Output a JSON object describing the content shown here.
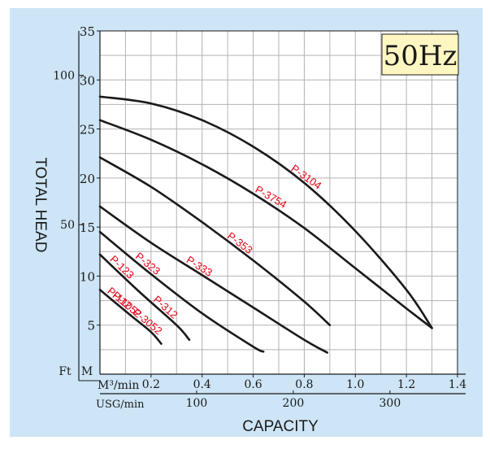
{
  "chart_data": {
    "type": "line",
    "title": "",
    "frequency_badge": "50Hz",
    "xlabel": "CAPACITY",
    "ylabel": "TOTAL HEAD",
    "x_unit_primary": "M³/min",
    "x_unit_secondary": "USG/min",
    "y_unit_meters": "M",
    "y_unit_feet": "Ft",
    "xlim": [
      0,
      1.4
    ],
    "ylim": [
      0,
      35
    ],
    "grid": true,
    "x_ticks_primary": [
      "0.2",
      "0.4",
      "0.6",
      "0.8",
      "1.0",
      "1.2",
      "1.4"
    ],
    "x_ticks_secondary": [
      {
        "label": "100",
        "m3_min": 0.3785
      },
      {
        "label": "200",
        "m3_min": 0.757
      },
      {
        "label": "300",
        "m3_min": 1.1355
      }
    ],
    "y_ticks_meters": [
      {
        "label": "5",
        "value": 5
      },
      {
        "label": "10",
        "value": 10
      },
      {
        "label": "15",
        "value": 15
      },
      {
        "label": "20",
        "value": 20
      },
      {
        "label": "25",
        "value": 25
      },
      {
        "label": "30",
        "value": 30
      },
      {
        "label": "35",
        "value": 35
      }
    ],
    "y_ticks_feet": [
      {
        "label": "50",
        "m": 15.24
      },
      {
        "label": "100",
        "m": 30.48
      }
    ],
    "series": [
      {
        "name": "P-3104",
        "label_at": 0.74,
        "values": [
          [
            0,
            28.3
          ],
          [
            0.2,
            27.6
          ],
          [
            0.4,
            25.9
          ],
          [
            0.6,
            23.2
          ],
          [
            0.8,
            19.5
          ],
          [
            1.0,
            14.6
          ],
          [
            1.2,
            8.6
          ],
          [
            1.3,
            4.7
          ]
        ]
      },
      {
        "name": "P-3754",
        "label_at": 0.6,
        "values": [
          [
            0,
            25.9
          ],
          [
            0.2,
            23.9
          ],
          [
            0.4,
            21.4
          ],
          [
            0.6,
            18.4
          ],
          [
            0.8,
            14.9
          ],
          [
            1.0,
            10.8
          ],
          [
            1.2,
            6.7
          ],
          [
            1.3,
            4.7
          ]
        ]
      },
      {
        "name": "P-353",
        "label_at": 0.49,
        "values": [
          [
            0,
            22.1
          ],
          [
            0.2,
            19.1
          ],
          [
            0.4,
            15.5
          ],
          [
            0.6,
            11.6
          ],
          [
            0.8,
            7.4
          ],
          [
            0.9,
            5.0
          ]
        ]
      },
      {
        "name": "P-333",
        "label_at": 0.33,
        "values": [
          [
            0,
            17.1
          ],
          [
            0.2,
            13.4
          ],
          [
            0.4,
            10.1
          ],
          [
            0.6,
            6.8
          ],
          [
            0.8,
            3.5
          ],
          [
            0.89,
            2.2
          ]
        ]
      },
      {
        "name": "P-323",
        "label_at": 0.13,
        "values": [
          [
            0,
            14.5
          ],
          [
            0.2,
            10.2
          ],
          [
            0.4,
            6.2
          ],
          [
            0.6,
            2.8
          ],
          [
            0.64,
            2.3
          ]
        ]
      },
      {
        "name": "P-123",
        "label_at": 0.03,
        "values": [
          [
            0,
            12.2
          ],
          [
            0.15,
            8.5
          ],
          [
            0.3,
            5.0
          ],
          [
            0.35,
            3.5
          ]
        ]
      },
      {
        "name": "P-112",
        "label_at": 0.02,
        "values": [
          [
            0,
            8.6
          ],
          [
            0.12,
            6.0
          ],
          [
            0.2,
            4.3
          ],
          [
            0.24,
            3.1
          ]
        ]
      },
      {
        "name": "P-312",
        "label_at": 0.2,
        "values": [
          [
            0,
            12.2
          ],
          [
            0.15,
            8.5
          ],
          [
            0.3,
            5.0
          ],
          [
            0.35,
            3.5
          ]
        ]
      },
      {
        "name": "P-1052",
        "label_at": 0.04,
        "values": [
          [
            0,
            8.6
          ],
          [
            0.12,
            6.0
          ],
          [
            0.2,
            4.3
          ],
          [
            0.24,
            3.1
          ]
        ]
      },
      {
        "name": "P-3052",
        "label_at": 0.12,
        "values": [
          [
            0,
            8.6
          ],
          [
            0.12,
            6.0
          ],
          [
            0.2,
            4.3
          ],
          [
            0.24,
            3.1
          ]
        ]
      }
    ]
  },
  "colors": {
    "background": "#cde5f6",
    "plot_background": "#ffffff",
    "grid": "#b3b3b3",
    "curve": "#1a1a1a",
    "curve_label": "#e60012",
    "badge_fill": "#fff7c2",
    "text": "#1a1a1a"
  }
}
